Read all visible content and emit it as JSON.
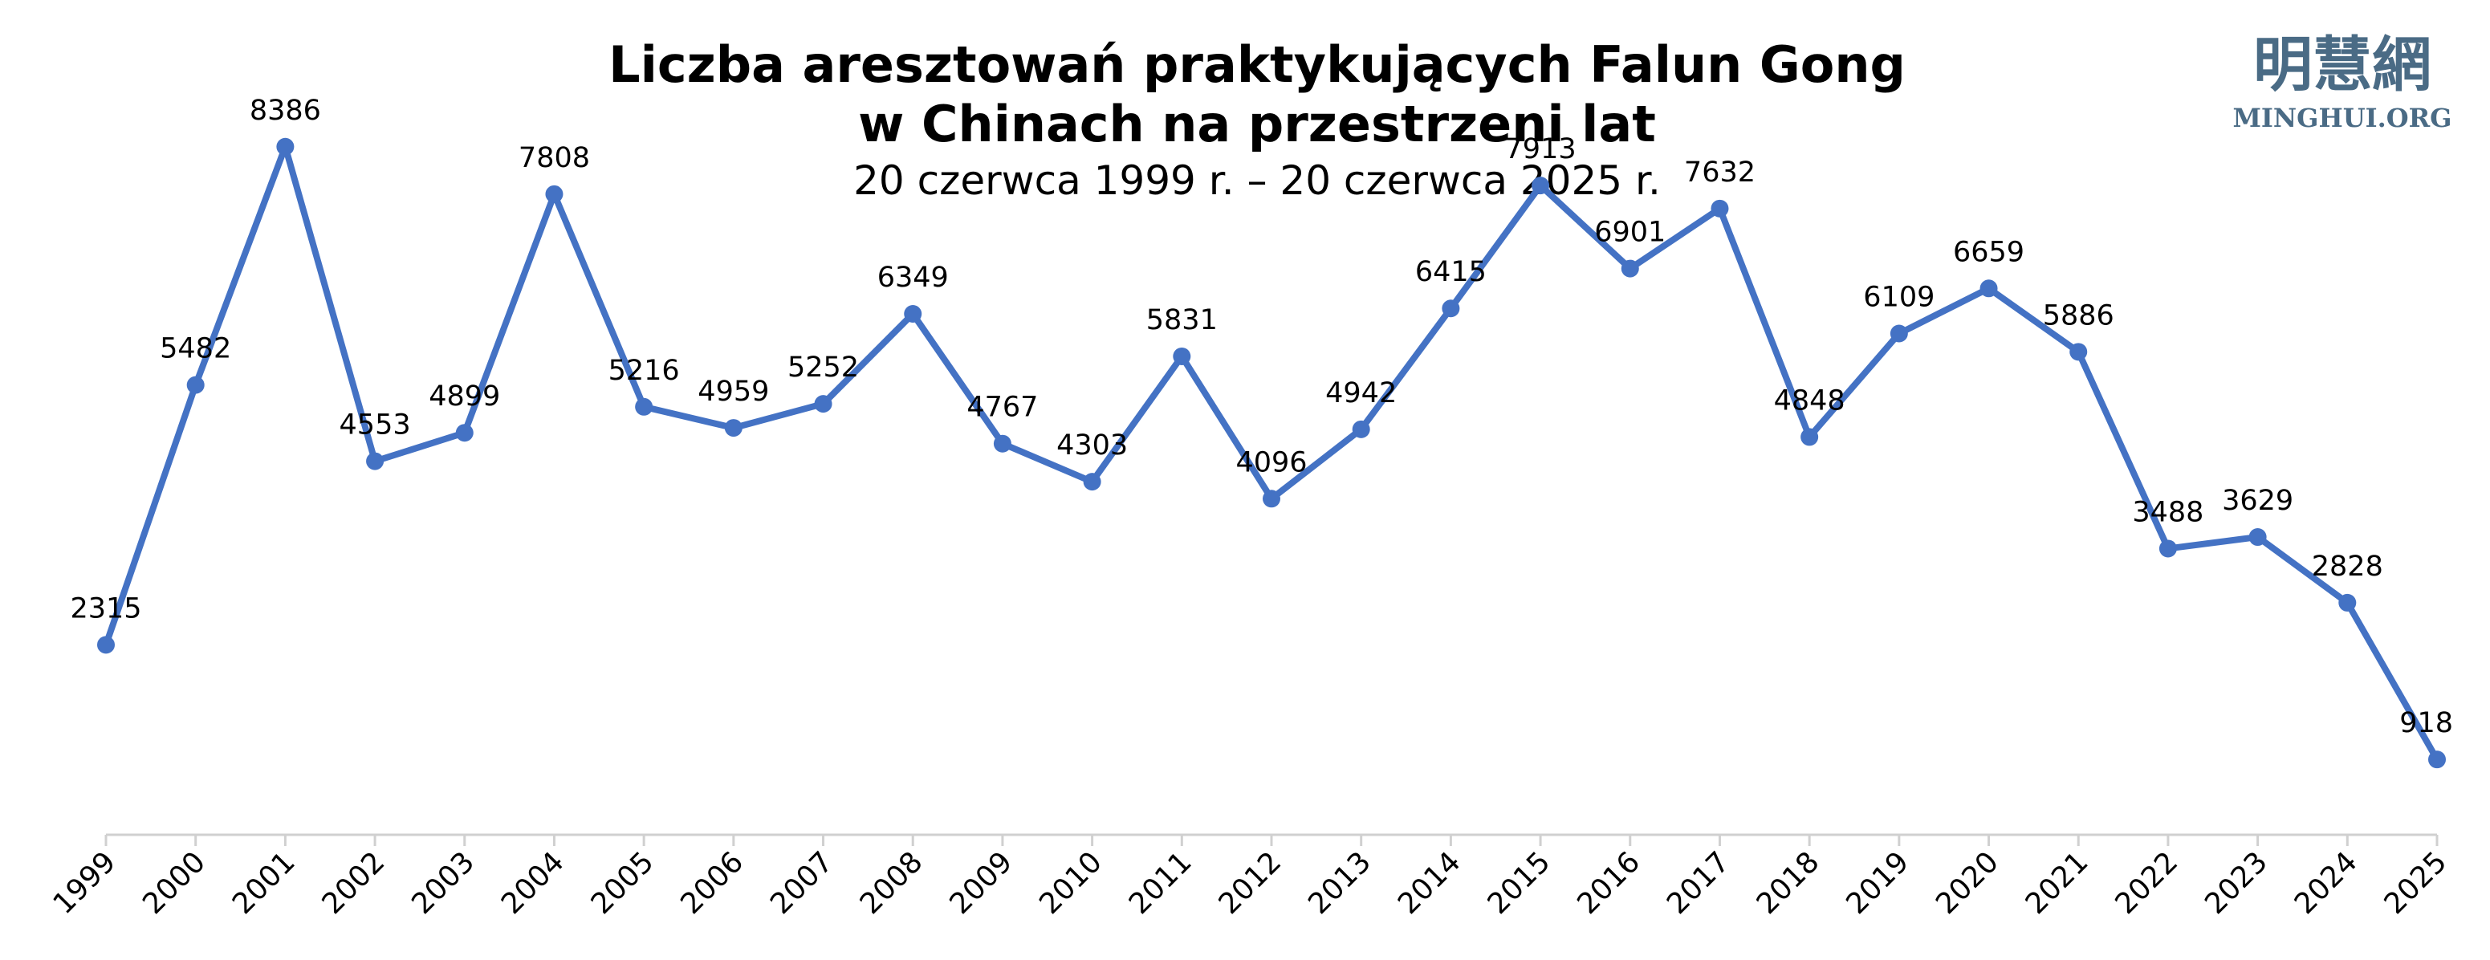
{
  "logo": {
    "chinese": "明慧網",
    "latin": "MINGHUI.ORG"
  },
  "chart_data": {
    "type": "line",
    "title": "Liczba aresztowań praktykujących Falun Gong",
    "title_line2": "w Chinach na przestrzeni lat",
    "subtitle": "20 czerwca 1999 r. – 20 czerwca 2025 r.",
    "xlabel": "",
    "ylabel": "",
    "grid": false,
    "legend": "none",
    "categories": [
      "1999",
      "2000",
      "2001",
      "2002",
      "2003",
      "2004",
      "2005",
      "2006",
      "2007",
      "2008",
      "2009",
      "2010",
      "2011",
      "2012",
      "2013",
      "2014",
      "2015",
      "2016",
      "2017",
      "2018",
      "2019",
      "2020",
      "2021",
      "2022",
      "2023",
      "2024",
      "2025"
    ],
    "series": [
      {
        "values": [
          2315,
          5482,
          8386,
          4553,
          4899,
          7808,
          5216,
          4959,
          5252,
          6349,
          4767,
          4303,
          5831,
          4096,
          4942,
          6415,
          7913,
          6901,
          7632,
          4848,
          6109,
          6659,
          5886,
          3488,
          3629,
          2828,
          918
        ],
        "color": "#4472c4"
      }
    ],
    "ylim": [
      0,
      9000
    ],
    "data_labels": true
  }
}
